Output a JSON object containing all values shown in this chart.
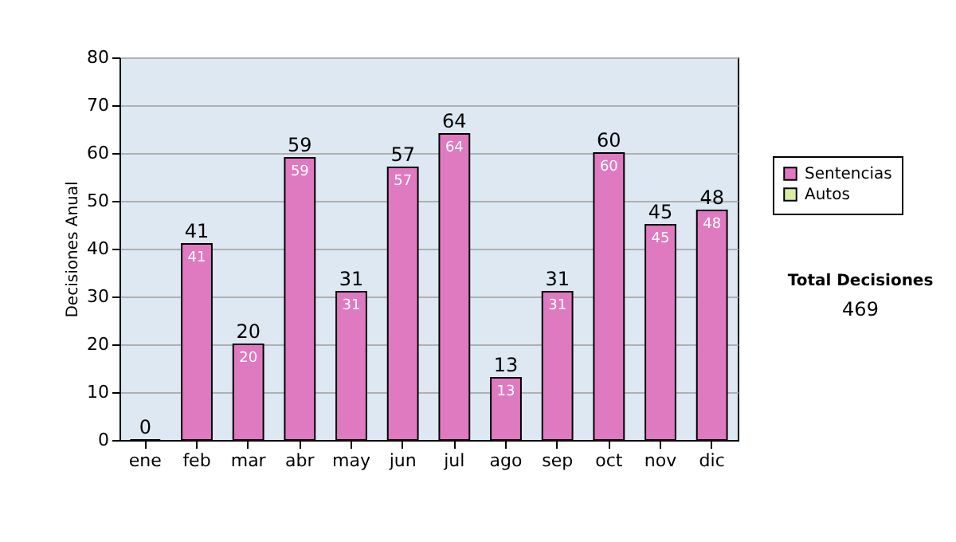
{
  "chart_data": {
    "type": "bar",
    "ylabel": "Decisiones Anual",
    "categories": [
      "ene",
      "feb",
      "mar",
      "abr",
      "may",
      "jun",
      "jul",
      "ago",
      "sep",
      "oct",
      "nov",
      "dic"
    ],
    "series": [
      {
        "name": "Sentencias",
        "color": "#e07ac0",
        "values": [
          0,
          41,
          20,
          59,
          31,
          57,
          64,
          13,
          31,
          60,
          45,
          48
        ],
        "value_labels": [
          null,
          "41",
          "20",
          "59",
          "31",
          "57",
          "64",
          "13",
          "31",
          "60",
          "45",
          "48"
        ]
      },
      {
        "name": "Autos",
        "color": "#d9eea0",
        "values": [
          null,
          null,
          null,
          null,
          null,
          null,
          null,
          null,
          null,
          null,
          null,
          null
        ]
      }
    ],
    "totals": [
      "0",
      "41",
      "20",
      "59",
      "31",
      "57",
      "64",
      "13",
      "31",
      "60",
      "45",
      "48"
    ],
    "ylim": [
      0,
      80
    ],
    "yticks": [
      0,
      10,
      20,
      30,
      40,
      50,
      60,
      70,
      80
    ],
    "grid": "y",
    "legend": "right",
    "annotations": [
      "Total Decisiones",
      "469"
    ]
  }
}
